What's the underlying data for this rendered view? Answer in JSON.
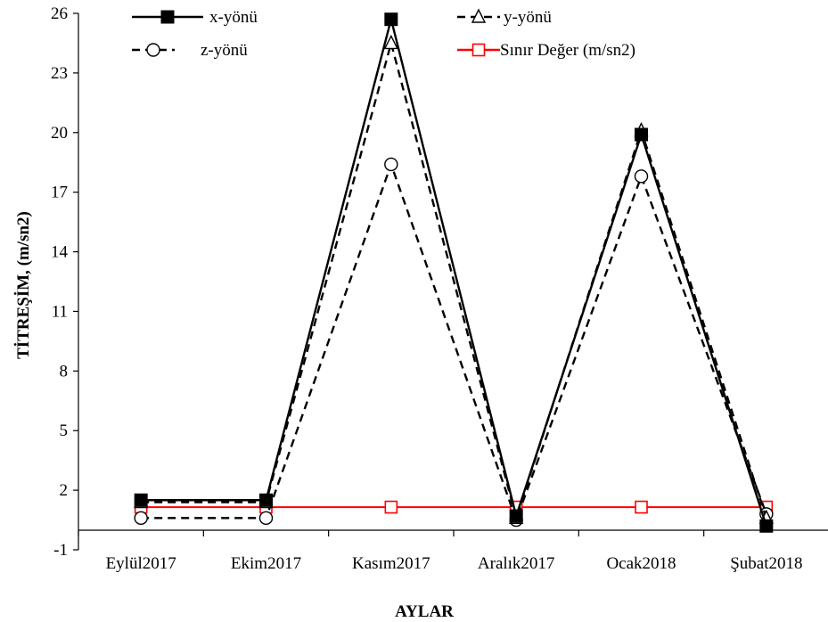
{
  "chart_data": {
    "type": "line",
    "categories": [
      "Eylül2017",
      "Ekim2017",
      "Kasım2017",
      "Aralık2017",
      "Ocak2018",
      "Şubat2018"
    ],
    "xlabel": "AYLAR",
    "ylabel": "TİTREŞİM,  (m/sn2)",
    "ylim": [
      -1,
      26
    ],
    "yticks": [
      -1,
      2,
      5,
      8,
      11,
      14,
      17,
      20,
      23,
      26
    ],
    "grid": false,
    "legend_position": "top",
    "series": [
      {
        "name": "x-yönü",
        "values": [
          1.5,
          1.5,
          25.7,
          0.7,
          19.9,
          0.2
        ],
        "color": "#000000",
        "marker": "filled-square",
        "line": "solid"
      },
      {
        "name": "y-yönü",
        "values": [
          1.4,
          1.4,
          24.5,
          0.6,
          20.1,
          0.6
        ],
        "color": "#000000",
        "marker": "open-triangle",
        "line": "dashed"
      },
      {
        "name": "z-yönü",
        "values": [
          0.6,
          0.6,
          18.4,
          0.5,
          17.8,
          0.8
        ],
        "color": "#000000",
        "marker": "open-circle",
        "line": "dashed"
      },
      {
        "name": "Sınır Değer (m/sn2)",
        "values": [
          1.15,
          1.15,
          1.15,
          1.15,
          1.15,
          1.15
        ],
        "color": "#ff0000",
        "marker": "open-square",
        "line": "solid"
      }
    ]
  }
}
